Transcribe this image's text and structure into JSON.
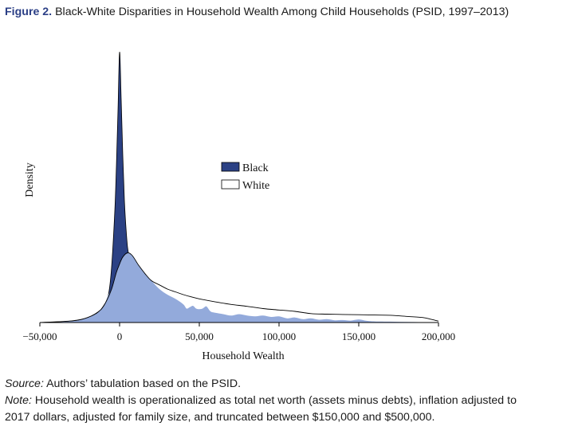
{
  "figure": {
    "label": "Figure 2.",
    "title": "Black-White Disparities in Household Wealth Among Child Households (PSID, 1997–2013)"
  },
  "source": {
    "prefix": "Source:",
    "text": "Authors’ tabulation based on the PSID."
  },
  "note": {
    "prefix": "Note:",
    "line1": "Household wealth is operationalized as total net worth (assets minus debts), inflation adjusted to",
    "line2": "2017 dollars, adjusted for family size, and truncated between $150,000 and $500,000."
  },
  "colors": {
    "black_series_fill": "#2b4184",
    "white_series_fill": "#93aadb",
    "white_series_stroke": "#000000"
  },
  "chart_data": {
    "type": "area",
    "title": "Black-White Disparities in Household Wealth Among Child Households (PSID, 1997–2013)",
    "xlabel": "Household Wealth",
    "ylabel": "Density",
    "xlim": [
      -50000,
      200000
    ],
    "ylim": [
      0,
      1
    ],
    "xticks": [
      -50000,
      0,
      50000,
      100000,
      150000,
      200000
    ],
    "xtick_labels": [
      "−50,000",
      "0",
      "50,000",
      "100,000",
      "150,000",
      "200,000"
    ],
    "grid": false,
    "legend_position": "upper-center",
    "series": [
      {
        "name": "Black",
        "x": [
          -50000,
          -35000,
          -25000,
          -15000,
          -10000,
          -7000,
          -5000,
          -3000,
          -2000,
          -1000,
          0,
          1000,
          2000,
          3000,
          4000,
          5000,
          6000,
          8000,
          10000,
          12000
        ],
        "y": [
          0.0,
          0.003,
          0.009,
          0.03,
          0.06,
          0.1,
          0.2,
          0.4,
          0.56,
          0.76,
          0.97,
          0.8,
          0.6,
          0.44,
          0.34,
          0.27,
          0.24,
          0.23,
          0.21,
          0.18
        ]
      },
      {
        "name": "White",
        "x": [
          -50000,
          -30000,
          -20000,
          -12000,
          -8000,
          -5000,
          -2000,
          0,
          2000,
          5000,
          8000,
          12000,
          16000,
          20000,
          25000,
          30000,
          35000,
          40000,
          45000,
          50000,
          60000,
          70000,
          80000,
          90000,
          100000,
          110000,
          120000,
          130000,
          140000,
          150000,
          160000,
          170000,
          180000,
          190000,
          195000,
          200000
        ],
        "y": [
          0.0,
          0.006,
          0.018,
          0.045,
          0.08,
          0.12,
          0.18,
          0.21,
          0.235,
          0.25,
          0.24,
          0.205,
          0.175,
          0.15,
          0.135,
          0.12,
          0.11,
          0.1,
          0.092,
          0.085,
          0.074,
          0.065,
          0.058,
          0.05,
          0.045,
          0.04,
          0.032,
          0.03,
          0.029,
          0.028,
          0.027,
          0.026,
          0.022,
          0.018,
          0.012,
          0.005
        ]
      }
    ],
    "overlap_fill": {
      "x": [
        -50000,
        -35000,
        -25000,
        -15000,
        -10000,
        -7000,
        -5000,
        -2000,
        0,
        2000,
        5000,
        8000,
        12000,
        16000,
        20000,
        25000,
        30000,
        35000,
        40000,
        42000,
        44000,
        46000,
        48000,
        50000,
        52000,
        54000,
        55000,
        57000,
        60000,
        65000,
        70000,
        75000,
        80000,
        85000,
        90000,
        95000,
        100000,
        105000,
        110000,
        115000,
        120000,
        125000,
        130000,
        135000,
        140000,
        145000,
        150000,
        155000,
        160000,
        170000,
        180000,
        190000,
        200000
      ],
      "y": [
        0.0,
        0.003,
        0.009,
        0.03,
        0.06,
        0.1,
        0.12,
        0.18,
        0.21,
        0.235,
        0.25,
        0.24,
        0.205,
        0.175,
        0.15,
        0.12,
        0.1,
        0.085,
        0.065,
        0.05,
        0.055,
        0.06,
        0.05,
        0.048,
        0.05,
        0.058,
        0.055,
        0.04,
        0.035,
        0.03,
        0.025,
        0.03,
        0.025,
        0.022,
        0.025,
        0.02,
        0.022,
        0.015,
        0.018,
        0.012,
        0.015,
        0.01,
        0.012,
        0.008,
        0.009,
        0.007,
        0.011,
        0.006,
        0.004,
        0.003,
        0.002,
        0.001,
        0.0
      ]
    }
  }
}
